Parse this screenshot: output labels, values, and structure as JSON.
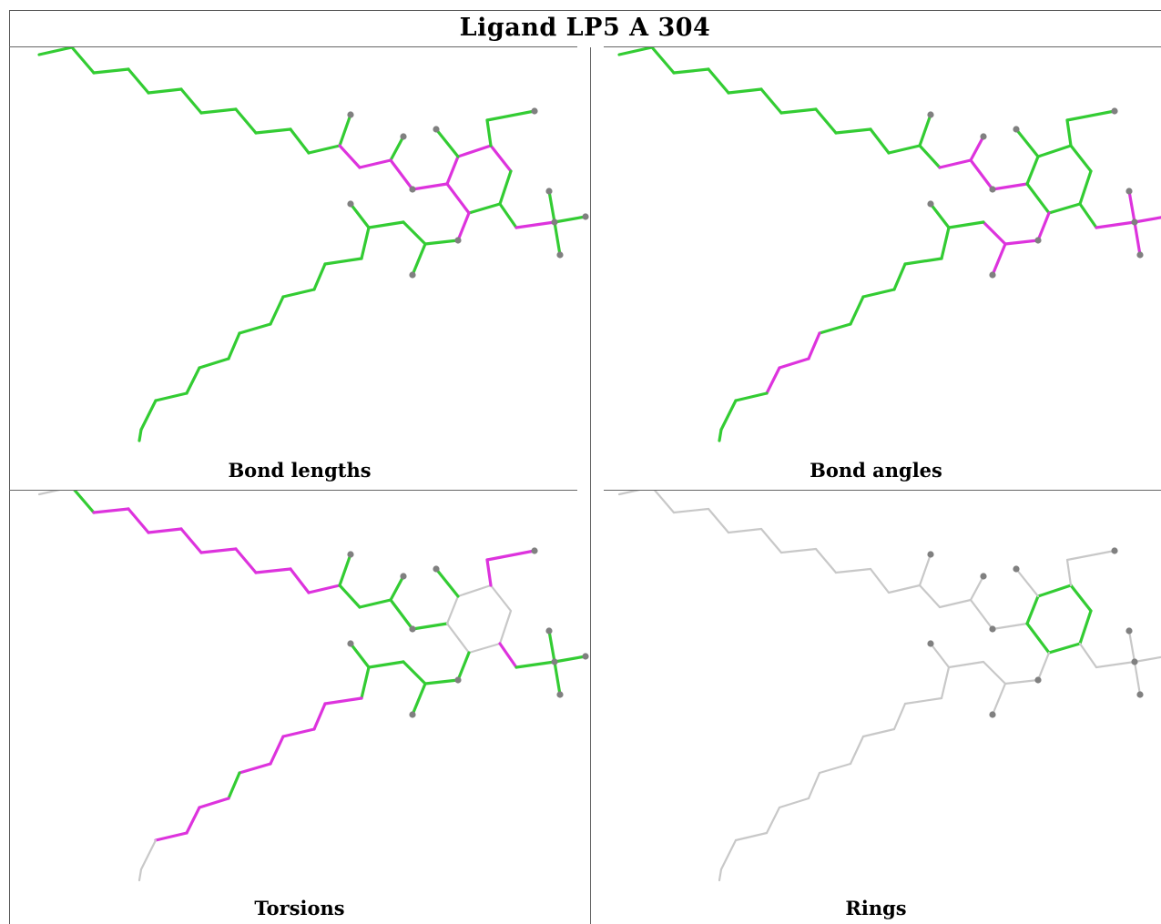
{
  "title": "Ligand LP5 A 304",
  "panels": [
    {
      "caption": "Bond lengths"
    },
    {
      "caption": "Bond angles"
    },
    {
      "caption": "Torsions"
    },
    {
      "caption": "Rings"
    }
  ],
  "colors": {
    "green": "#33cc33",
    "magenta": "#dd33dd",
    "grey_bond": "#c8c8c8",
    "atom": "#808080"
  }
}
